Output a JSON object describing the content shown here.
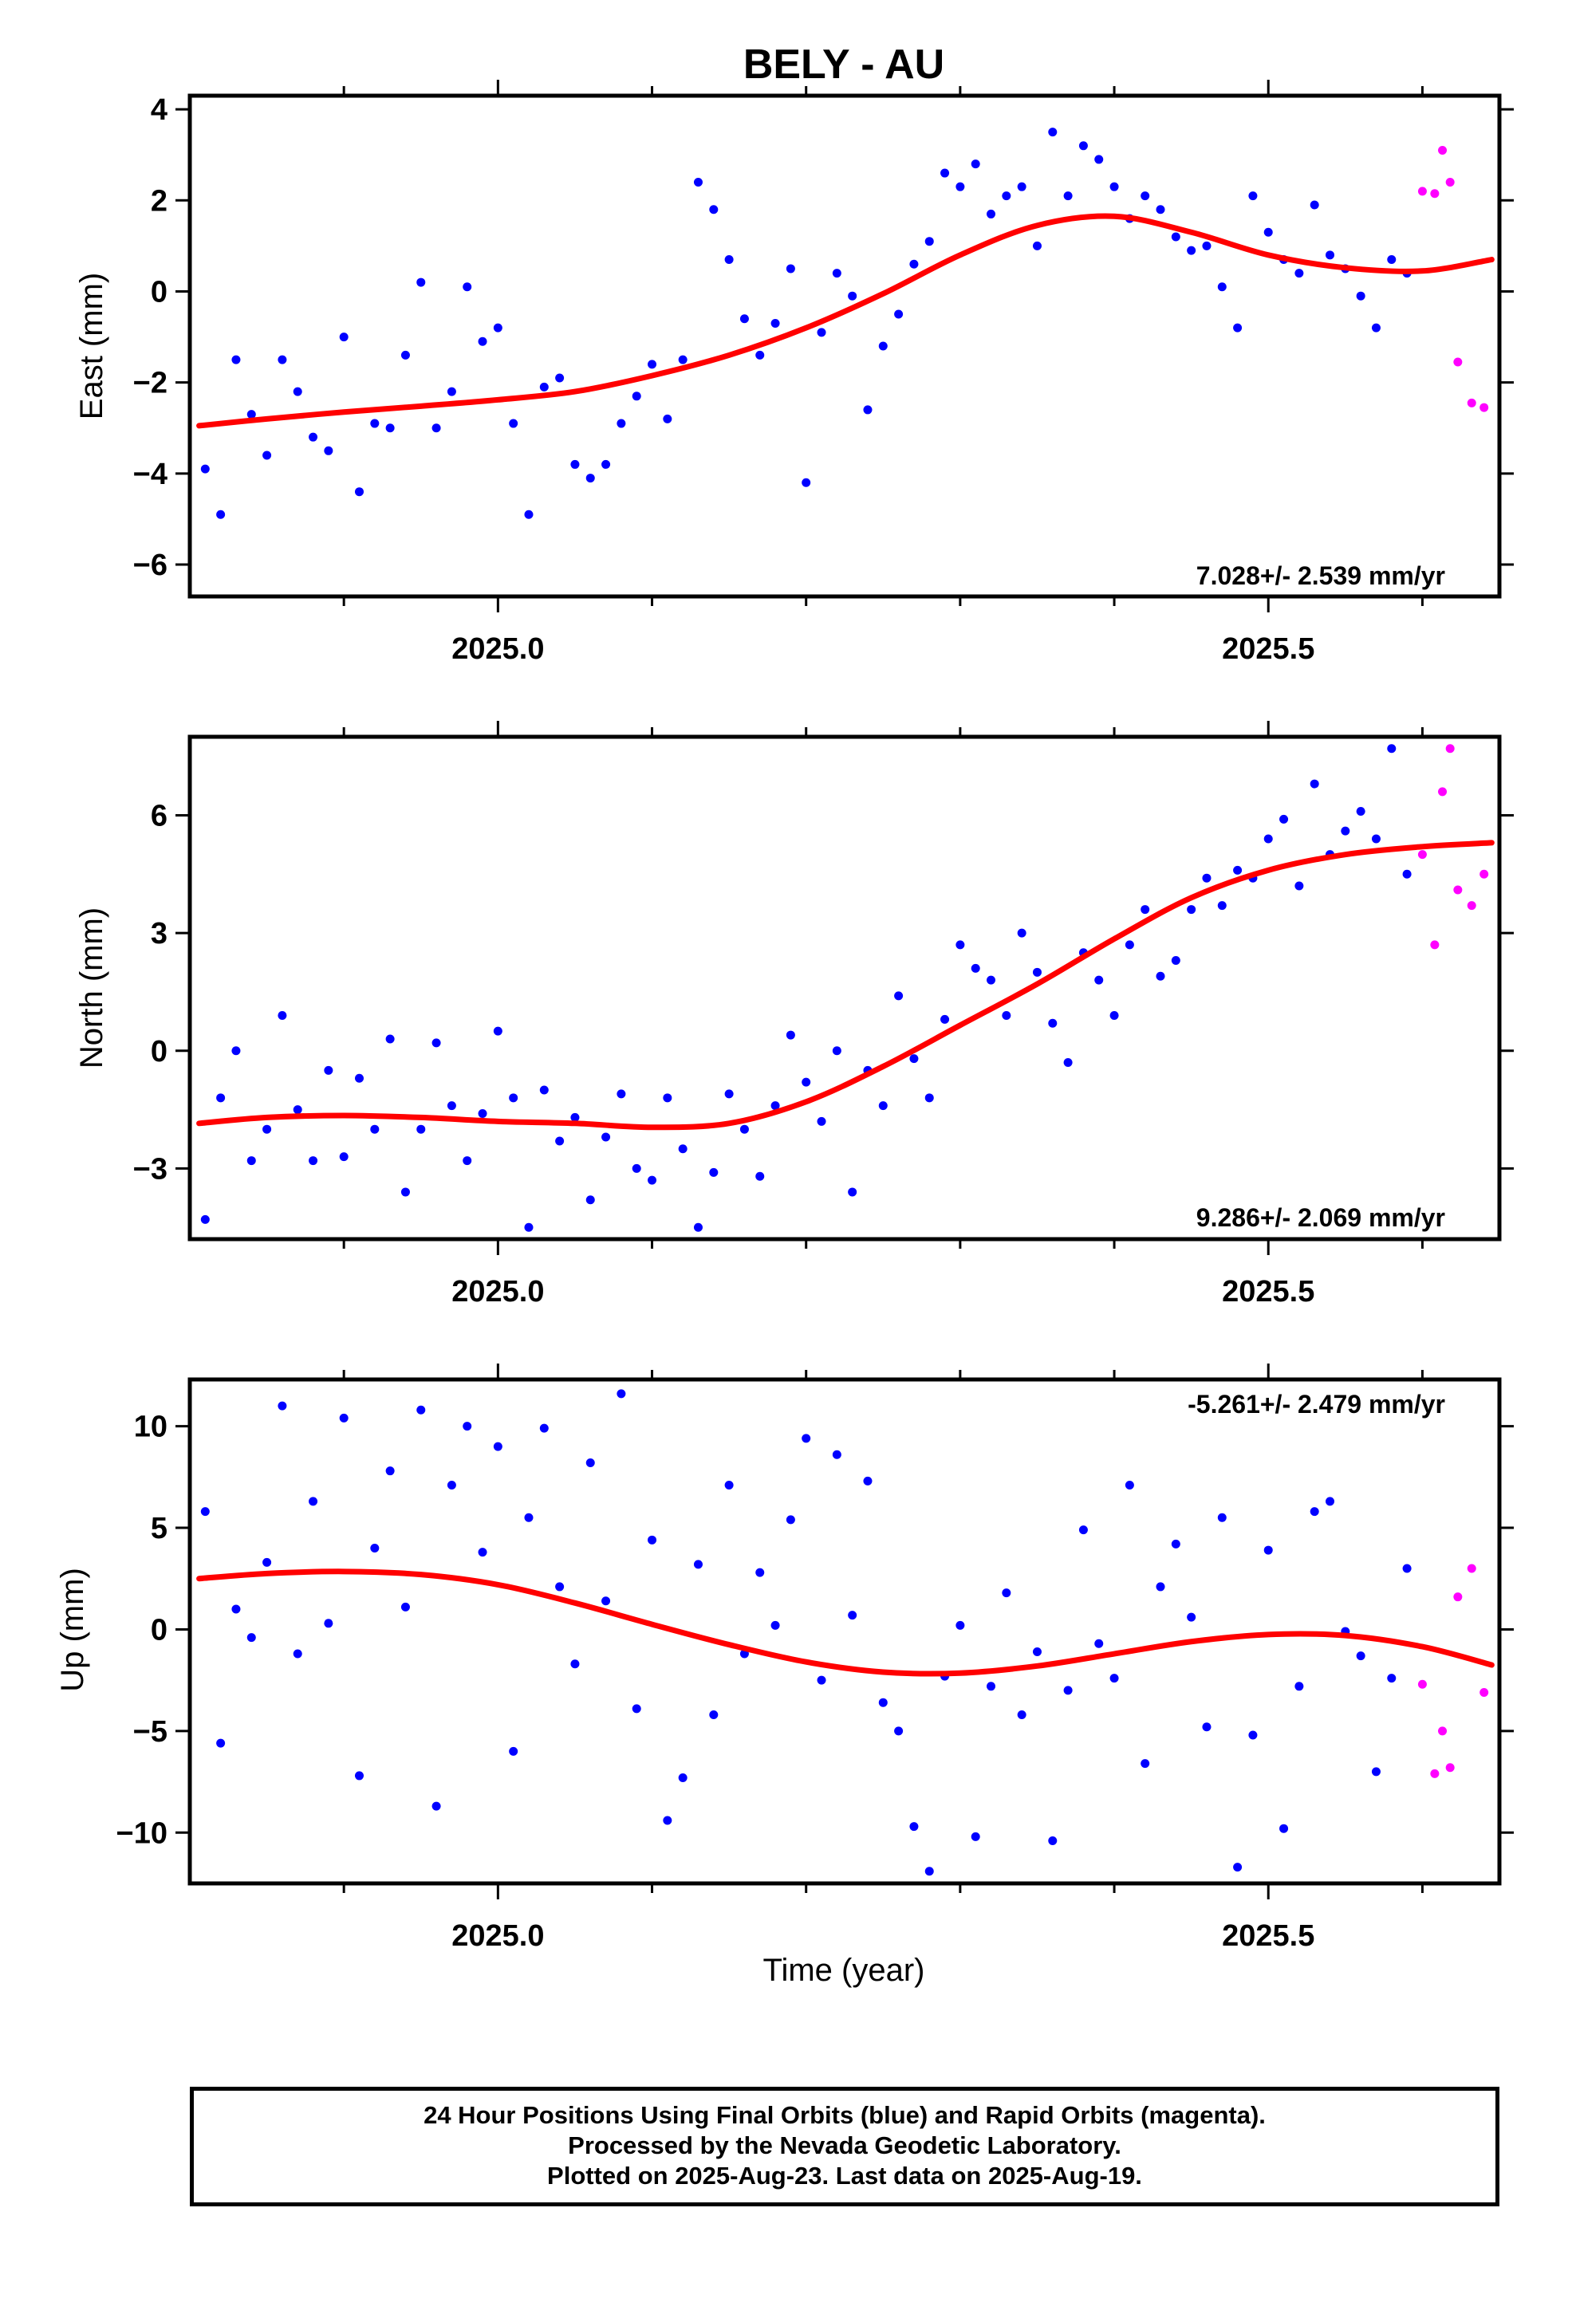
{
  "title": "BELY - AU",
  "x_axis": {
    "label": "Time (year)",
    "range": [
      2024.8,
      2025.65
    ],
    "major_ticks": [
      2025.0,
      2025.5
    ],
    "tick_labels": [
      "2025.0",
      "2025.5"
    ],
    "minor_ticks": [
      2024.9,
      2025.1,
      2025.2,
      2025.3,
      2025.4,
      2025.6
    ]
  },
  "colors": {
    "final_orbits": "#0000ff",
    "rapid_orbits": "#ff00ff",
    "model_fit": "#ff0000",
    "frame": "#000000"
  },
  "chart_data": [
    {
      "type": "scatter",
      "ylabel": "East (mm)",
      "ylim": [
        -6.7,
        4.3
      ],
      "y_ticks": [
        -6,
        -4,
        -2,
        0,
        2,
        4
      ],
      "y_tick_labels": [
        "−6",
        "−4",
        "−2",
        "0",
        "2",
        "4"
      ],
      "rate_text": "7.028+/- 2.539 mm/yr",
      "rate_position": "bottom-right",
      "fit": {
        "x": [
          2024.806,
          2024.85,
          2024.9,
          2024.95,
          2025.0,
          2025.05,
          2025.1,
          2025.15,
          2025.2,
          2025.25,
          2025.3,
          2025.35,
          2025.4,
          2025.45,
          2025.5,
          2025.55,
          2025.6,
          2025.645
        ],
        "y": [
          -2.95,
          -2.8,
          -2.65,
          -2.52,
          -2.38,
          -2.2,
          -1.85,
          -1.4,
          -0.8,
          -0.05,
          0.8,
          1.45,
          1.65,
          1.3,
          0.8,
          0.52,
          0.45,
          0.7
        ]
      },
      "series": [
        {
          "name": "Final Orbits",
          "color": "#0000ff",
          "x": [
            2024.81,
            2024.82,
            2024.83,
            2024.84,
            2024.85,
            2024.86,
            2024.87,
            2024.88,
            2024.89,
            2024.9,
            2024.91,
            2024.92,
            2024.93,
            2024.94,
            2024.95,
            2024.96,
            2024.97,
            2024.98,
            2024.99,
            2025.0,
            2025.01,
            2025.02,
            2025.03,
            2025.04,
            2025.05,
            2025.06,
            2025.07,
            2025.08,
            2025.09,
            2025.1,
            2025.11,
            2025.12,
            2025.13,
            2025.14,
            2025.15,
            2025.16,
            2025.17,
            2025.18,
            2025.19,
            2025.2,
            2025.21,
            2025.22,
            2025.23,
            2025.24,
            2025.25,
            2025.26,
            2025.27,
            2025.28,
            2025.29,
            2025.3,
            2025.31,
            2025.32,
            2025.33,
            2025.34,
            2025.35,
            2025.36,
            2025.37,
            2025.38,
            2025.39,
            2025.4,
            2025.41,
            2025.42,
            2025.43,
            2025.44,
            2025.45,
            2025.46,
            2025.47,
            2025.48,
            2025.49,
            2025.5,
            2025.51,
            2025.52,
            2025.53,
            2025.54,
            2025.55,
            2025.56,
            2025.57,
            2025.58,
            2025.59
          ],
          "y": [
            -3.9,
            -4.9,
            -1.5,
            -2.7,
            -3.6,
            -1.5,
            -2.2,
            -3.2,
            -3.5,
            -1.0,
            -4.4,
            -2.9,
            -3.0,
            -1.4,
            0.2,
            -3.0,
            -2.2,
            0.1,
            -1.1,
            -0.8,
            -2.9,
            -4.9,
            -2.1,
            -1.9,
            -3.8,
            -4.1,
            -3.8,
            -2.9,
            -2.3,
            -1.6,
            -2.8,
            -1.5,
            2.4,
            1.8,
            0.7,
            -0.6,
            -1.4,
            -0.7,
            0.5,
            -4.2,
            -0.9,
            0.4,
            -0.1,
            -2.6,
            -1.2,
            -0.5,
            0.6,
            1.1,
            2.6,
            2.3,
            2.8,
            1.7,
            2.1,
            2.3,
            1.0,
            3.5,
            2.1,
            3.2,
            2.9,
            2.3,
            1.6,
            2.1,
            1.8,
            1.2,
            0.9,
            1.0,
            0.1,
            -0.8,
            2.1,
            1.3,
            0.7,
            0.4,
            1.9,
            0.8,
            0.5,
            -0.1,
            -0.8,
            0.7,
            0.4
          ]
        },
        {
          "name": "Rapid Orbits",
          "color": "#ff00ff",
          "x": [
            2025.6,
            2025.608,
            2025.613,
            2025.618,
            2025.623,
            2025.632,
            2025.64
          ],
          "y": [
            2.2,
            2.15,
            3.1,
            2.4,
            -1.55,
            -2.45,
            -2.55
          ]
        }
      ]
    },
    {
      "type": "scatter",
      "ylabel": "North (mm)",
      "ylim": [
        -4.8,
        8.0
      ],
      "y_ticks": [
        -3,
        0,
        3,
        6
      ],
      "y_tick_labels": [
        "−3",
        "0",
        "3",
        "6"
      ],
      "rate_text": "9.286+/- 2.069 mm/yr",
      "rate_position": "bottom-right",
      "fit": {
        "x": [
          2024.806,
          2024.85,
          2024.9,
          2024.95,
          2025.0,
          2025.05,
          2025.1,
          2025.15,
          2025.2,
          2025.25,
          2025.3,
          2025.35,
          2025.4,
          2025.45,
          2025.5,
          2025.55,
          2025.6,
          2025.645
        ],
        "y": [
          -1.85,
          -1.7,
          -1.65,
          -1.7,
          -1.8,
          -1.85,
          -1.95,
          -1.85,
          -1.3,
          -0.4,
          0.65,
          1.7,
          2.85,
          3.9,
          4.6,
          5.0,
          5.2,
          5.3
        ]
      },
      "series": [
        {
          "name": "Final Orbits",
          "color": "#0000ff",
          "x": [
            2024.81,
            2024.82,
            2024.83,
            2024.84,
            2024.85,
            2024.86,
            2024.87,
            2024.88,
            2024.89,
            2024.9,
            2024.91,
            2024.92,
            2024.93,
            2024.94,
            2024.95,
            2024.96,
            2024.97,
            2024.98,
            2024.99,
            2025.0,
            2025.01,
            2025.02,
            2025.03,
            2025.04,
            2025.05,
            2025.06,
            2025.07,
            2025.08,
            2025.09,
            2025.1,
            2025.11,
            2025.12,
            2025.13,
            2025.14,
            2025.15,
            2025.16,
            2025.17,
            2025.18,
            2025.19,
            2025.2,
            2025.21,
            2025.22,
            2025.23,
            2025.24,
            2025.25,
            2025.26,
            2025.27,
            2025.28,
            2025.29,
            2025.3,
            2025.31,
            2025.32,
            2025.33,
            2025.34,
            2025.35,
            2025.36,
            2025.37,
            2025.38,
            2025.39,
            2025.4,
            2025.41,
            2025.42,
            2025.43,
            2025.44,
            2025.45,
            2025.46,
            2025.47,
            2025.48,
            2025.49,
            2025.5,
            2025.51,
            2025.52,
            2025.53,
            2025.54,
            2025.55,
            2025.56,
            2025.57,
            2025.58,
            2025.59
          ],
          "y": [
            -4.3,
            -1.2,
            0.0,
            -2.8,
            -2.0,
            0.9,
            -1.5,
            -2.8,
            -0.5,
            -2.7,
            -0.7,
            -2.0,
            0.3,
            -3.6,
            -2.0,
            0.2,
            -1.4,
            -2.8,
            -1.6,
            0.5,
            -1.2,
            -4.5,
            -1.0,
            -2.3,
            -1.7,
            -3.8,
            -2.2,
            -1.1,
            -3.0,
            -3.3,
            -1.2,
            -2.5,
            -4.5,
            -3.1,
            -1.1,
            -2.0,
            -3.2,
            -1.4,
            0.4,
            -0.8,
            -1.8,
            0.0,
            -3.6,
            -0.5,
            -1.4,
            1.4,
            -0.2,
            -1.2,
            0.8,
            2.7,
            2.1,
            1.8,
            0.9,
            3.0,
            2.0,
            0.7,
            -0.3,
            2.5,
            1.8,
            0.9,
            2.7,
            3.6,
            1.9,
            2.3,
            3.6,
            4.4,
            3.7,
            4.6,
            4.4,
            5.4,
            5.9,
            4.2,
            6.8,
            5.0,
            5.6,
            6.1,
            5.4,
            7.7,
            4.5
          ]
        },
        {
          "name": "Rapid Orbits",
          "color": "#ff00ff",
          "x": [
            2025.6,
            2025.608,
            2025.613,
            2025.618,
            2025.623,
            2025.632,
            2025.64
          ],
          "y": [
            5.0,
            2.7,
            6.6,
            7.7,
            4.1,
            3.7,
            4.5
          ]
        }
      ]
    },
    {
      "type": "scatter",
      "ylabel": "Up (mm)",
      "ylim": [
        -12.5,
        12.3
      ],
      "y_ticks": [
        -10,
        -5,
        0,
        5,
        10
      ],
      "y_tick_labels": [
        "−10",
        "−5",
        "0",
        "5",
        "10"
      ],
      "rate_text": "-5.261+/- 2.479 mm/yr",
      "rate_position": "top-right",
      "fit": {
        "x": [
          2024.806,
          2024.85,
          2024.9,
          2024.95,
          2025.0,
          2025.05,
          2025.1,
          2025.15,
          2025.2,
          2025.25,
          2025.3,
          2025.35,
          2025.4,
          2025.45,
          2025.5,
          2025.55,
          2025.6,
          2025.645
        ],
        "y": [
          2.5,
          2.75,
          2.85,
          2.7,
          2.2,
          1.3,
          0.25,
          -0.75,
          -1.6,
          -2.1,
          -2.15,
          -1.8,
          -1.2,
          -0.6,
          -0.25,
          -0.3,
          -0.85,
          -1.75
        ]
      },
      "series": [
        {
          "name": "Final Orbits",
          "color": "#0000ff",
          "x": [
            2024.81,
            2024.82,
            2024.83,
            2024.84,
            2024.85,
            2024.86,
            2024.87,
            2024.88,
            2024.89,
            2024.9,
            2024.91,
            2024.92,
            2024.93,
            2024.94,
            2024.95,
            2024.96,
            2024.97,
            2024.98,
            2024.99,
            2025.0,
            2025.01,
            2025.02,
            2025.03,
            2025.04,
            2025.05,
            2025.06,
            2025.07,
            2025.08,
            2025.09,
            2025.1,
            2025.11,
            2025.12,
            2025.13,
            2025.14,
            2025.15,
            2025.16,
            2025.17,
            2025.18,
            2025.19,
            2025.2,
            2025.21,
            2025.22,
            2025.23,
            2025.24,
            2025.25,
            2025.26,
            2025.27,
            2025.28,
            2025.29,
            2025.3,
            2025.31,
            2025.32,
            2025.33,
            2025.34,
            2025.35,
            2025.36,
            2025.37,
            2025.38,
            2025.39,
            2025.4,
            2025.41,
            2025.42,
            2025.43,
            2025.44,
            2025.45,
            2025.46,
            2025.47,
            2025.48,
            2025.49,
            2025.5,
            2025.51,
            2025.52,
            2025.53,
            2025.54,
            2025.55,
            2025.56,
            2025.57,
            2025.58,
            2025.59
          ],
          "y": [
            5.8,
            -5.6,
            1.0,
            -0.4,
            3.3,
            11.0,
            -1.2,
            6.3,
            0.3,
            10.4,
            -7.2,
            4.0,
            7.8,
            1.1,
            10.8,
            -8.7,
            7.1,
            10.0,
            3.8,
            9.0,
            -6.0,
            5.5,
            9.9,
            2.1,
            -1.7,
            8.2,
            1.4,
            11.6,
            -3.9,
            4.4,
            -9.4,
            -7.3,
            3.2,
            -4.2,
            7.1,
            -1.2,
            2.8,
            0.2,
            5.4,
            9.4,
            -2.5,
            8.6,
            0.7,
            7.3,
            -3.6,
            -5.0,
            -9.7,
            -11.9,
            -2.3,
            0.2,
            -10.2,
            -2.8,
            1.8,
            -4.2,
            -1.1,
            -10.4,
            -3.0,
            4.9,
            -0.7,
            -2.4,
            7.1,
            -6.6,
            2.1,
            4.2,
            0.6,
            -4.8,
            5.5,
            -11.7,
            -5.2,
            3.9,
            -9.8,
            -2.8,
            5.8,
            6.3,
            -0.1,
            -1.3,
            -7.0,
            -2.4,
            3.0
          ]
        },
        {
          "name": "Rapid Orbits",
          "color": "#ff00ff",
          "x": [
            2025.6,
            2025.608,
            2025.613,
            2025.618,
            2025.623,
            2025.632,
            2025.64
          ],
          "y": [
            -2.7,
            -7.1,
            -5.0,
            -6.8,
            1.6,
            3.0,
            -3.1
          ]
        }
      ]
    }
  ],
  "footer": {
    "line1": "24 Hour Positions Using Final Orbits (blue) and Rapid Orbits (magenta).",
    "line2": "Processed by the Nevada Geodetic Laboratory.",
    "line3": "Plotted on 2025-Aug-23. Last data on 2025-Aug-19."
  }
}
